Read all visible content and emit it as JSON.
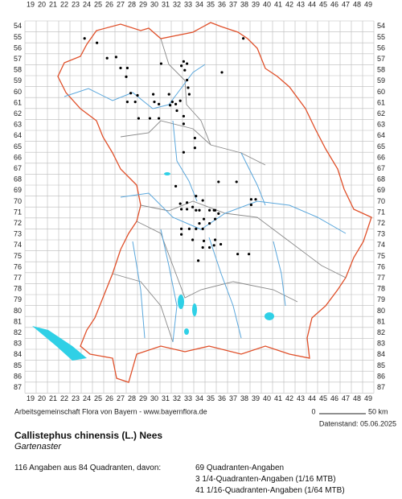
{
  "columns": [
    19,
    20,
    21,
    22,
    23,
    24,
    25,
    26,
    27,
    28,
    29,
    30,
    31,
    32,
    33,
    34,
    35,
    36,
    37,
    38,
    39,
    40,
    41,
    42,
    43,
    44,
    45,
    46,
    47,
    48,
    49
  ],
  "rows": [
    54,
    55,
    56,
    57,
    58,
    59,
    60,
    61,
    62,
    63,
    64,
    65,
    66,
    67,
    68,
    69,
    70,
    71,
    72,
    73,
    74,
    75,
    76,
    77,
    78,
    79,
    80,
    81,
    82,
    83,
    84,
    85,
    86,
    87
  ],
  "occurrences": [
    [
      23.8,
      55.1
    ],
    [
      24.9,
      55.5
    ],
    [
      25.8,
      56.9
    ],
    [
      26.6,
      56.8
    ],
    [
      27.6,
      57.8
    ],
    [
      27.5,
      58.6
    ],
    [
      27.0,
      57.8
    ],
    [
      27.9,
      60.1
    ],
    [
      27.6,
      60.9
    ],
    [
      28.5,
      60.3
    ],
    [
      28.3,
      60.9
    ],
    [
      29.9,
      60.2
    ],
    [
      30.0,
      60.9
    ],
    [
      31.3,
      60.2
    ],
    [
      31.6,
      60.9
    ],
    [
      32.3,
      60.8
    ],
    [
      32.6,
      62.2
    ],
    [
      32.6,
      62.9
    ],
    [
      32.0,
      61.7
    ],
    [
      30.4,
      62.4
    ],
    [
      28.6,
      62.4
    ],
    [
      29.6,
      62.4
    ],
    [
      30.6,
      57.4
    ],
    [
      31.4,
      61.2
    ],
    [
      31.9,
      61.1
    ],
    [
      30.4,
      61.1
    ],
    [
      32.6,
      57.2
    ],
    [
      32.4,
      57.6
    ],
    [
      32.7,
      58.0
    ],
    [
      32.9,
      58.9
    ],
    [
      33.0,
      59.6
    ],
    [
      33.1,
      60.2
    ],
    [
      32.6,
      65.5
    ],
    [
      33.6,
      65.1
    ],
    [
      36.0,
      58.2
    ],
    [
      37.9,
      55.1
    ],
    [
      35.7,
      68.2
    ],
    [
      37.3,
      68.2
    ],
    [
      31.9,
      68.6
    ],
    [
      32.9,
      70.1
    ],
    [
      33.7,
      69.5
    ],
    [
      33.4,
      70.5
    ],
    [
      32.3,
      70.2
    ],
    [
      32.4,
      70.7
    ],
    [
      32.9,
      70.7
    ],
    [
      33.7,
      70.8
    ],
    [
      34.3,
      69.9
    ],
    [
      34.0,
      70.8
    ],
    [
      34.9,
      70.8
    ],
    [
      35.4,
      70.8
    ],
    [
      32.4,
      72.5
    ],
    [
      32.4,
      73.0
    ],
    [
      33.1,
      72.5
    ],
    [
      33.7,
      72.5
    ],
    [
      34.3,
      72.5
    ],
    [
      34.0,
      72.0
    ],
    [
      34.4,
      71.6
    ],
    [
      34.9,
      72.0
    ],
    [
      35.4,
      71.6
    ],
    [
      35.3,
      70.8
    ],
    [
      33.4,
      73.5
    ],
    [
      34.4,
      73.6
    ],
    [
      35.4,
      73.5
    ],
    [
      35.9,
      73.9
    ],
    [
      34.3,
      74.2
    ],
    [
      34.9,
      74.2
    ],
    [
      35.3,
      74.0
    ],
    [
      33.9,
      75.4
    ],
    [
      37.4,
      74.8
    ],
    [
      38.4,
      74.8
    ],
    [
      38.6,
      69.8
    ],
    [
      38.6,
      70.3
    ],
    [
      39.0,
      69.8
    ],
    [
      35.7,
      71.1
    ],
    [
      33.6,
      64.2
    ],
    [
      32.9,
      57.4
    ]
  ],
  "footer": {
    "credit": "Arbeitsgemeinschaft Flora von Bayern - www.bayernflora.de",
    "scale_start": "0",
    "scale_end": "50 km",
    "date": "Datenstand: 05.06.2025"
  },
  "species": {
    "name": "Callistephus chinensis (L.) Nees",
    "common_name": "Gartenaster"
  },
  "summary": {
    "total": "116 Angaben aus 84 Quadranten, davon:",
    "lines": [
      "69 Quadranten-Angaben",
      "3 1/4-Quadranten-Angaben (1/16 MTB)",
      "41 1/16-Quadranten-Angaben (1/64 MTB)"
    ]
  }
}
